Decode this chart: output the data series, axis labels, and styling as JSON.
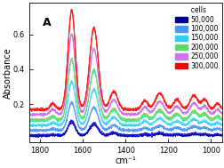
{
  "title": "A",
  "xlabel": "cm⁻¹",
  "ylabel": "Absorbance",
  "xlim": [
    1850,
    950
  ],
  "ylim": [
    -0.02,
    0.78
  ],
  "yticks": [
    0.2,
    0.4,
    0.6
  ],
  "xticks": [
    1800,
    1600,
    1400,
    1200,
    1000
  ],
  "legend_labels": [
    "50,000",
    "100,000",
    "150,000",
    "200,000",
    "250,000",
    "300,000"
  ],
  "legend_suffix": "  cells",
  "background_color": "#FFFFFF",
  "group_colors": {
    "50000": [
      "#00008B",
      "#0000CD",
      "#1515DD"
    ],
    "100000": [
      "#1E90FF",
      "#4499FF",
      "#6699EE"
    ],
    "150000": [
      "#00BFFF",
      "#33CCFF",
      "#66DDFF"
    ],
    "200000": [
      "#00EE99",
      "#44EE88",
      "#66DD77",
      "#88CC55"
    ],
    "250000": [
      "#DD88FF",
      "#CC77EE",
      "#BB66DD"
    ],
    "300000": [
      "#FF0000",
      "#FF1111",
      "#FF2222"
    ]
  },
  "legend_patch_colors": [
    "#00008B",
    "#4499FF",
    "#33CCFF",
    "#55DD66",
    "#CC77EE",
    "#FF0000"
  ],
  "baselines": [
    0.02,
    0.05,
    0.08,
    0.11,
    0.14,
    0.17
  ],
  "scales": [
    0.08,
    0.16,
    0.25,
    0.35,
    0.46,
    0.57
  ]
}
